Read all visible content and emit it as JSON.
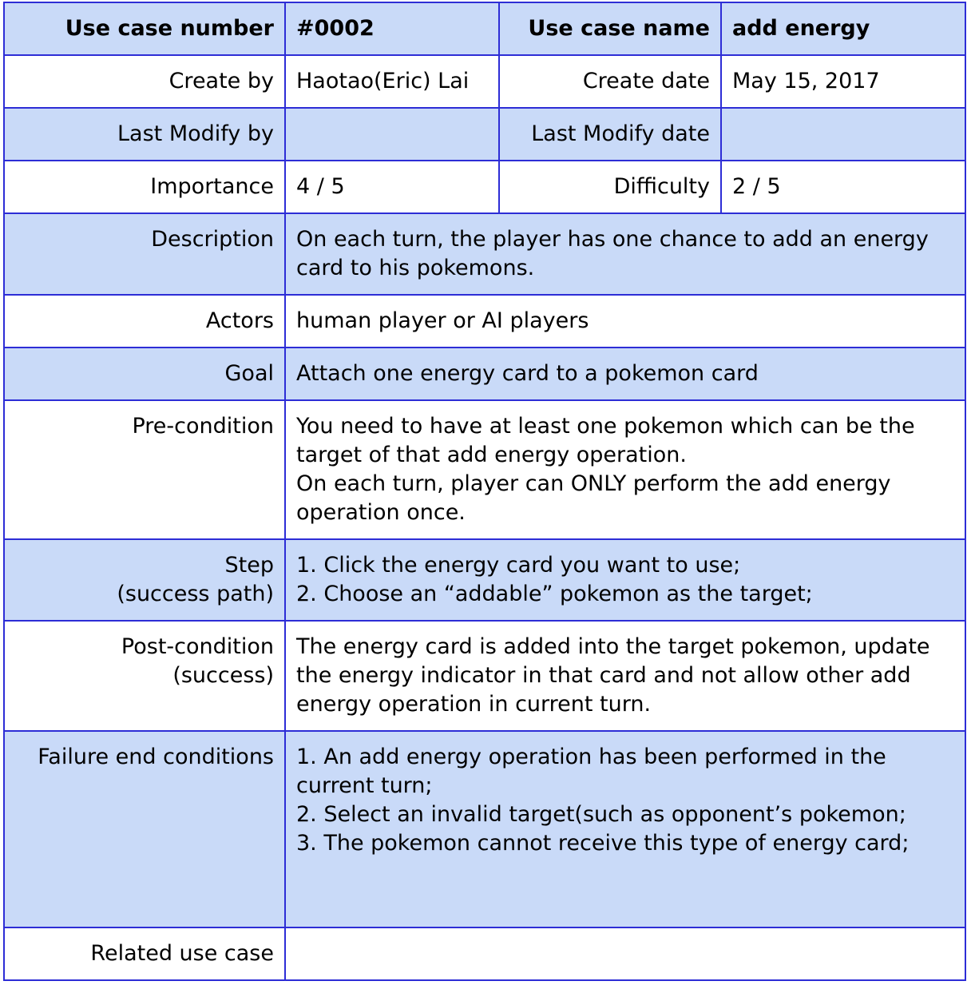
{
  "header": {
    "use_case_number_label": "Use case number",
    "use_case_number_value": "#0002",
    "use_case_name_label": "Use case name",
    "use_case_name_value": "add energy"
  },
  "meta": {
    "create_by_label": "Create by",
    "create_by_value": "Haotao(Eric) Lai",
    "create_date_label": "Create date",
    "create_date_value": "May 15, 2017",
    "last_modify_by_label": "Last Modify by",
    "last_modify_by_value": "",
    "last_modify_date_label": "Last Modify date",
    "last_modify_date_value": "",
    "importance_label": "Importance",
    "importance_value": "4 / 5",
    "difficulty_label": "Difficulty",
    "difficulty_value": "2  / 5"
  },
  "rows": {
    "description_label": "Description",
    "description_value": "On each turn, the player has one chance to add an energy card to his pokemons.",
    "actors_label": "Actors",
    "actors_value": "human player or AI players",
    "goal_label": "Goal",
    "goal_value": "Attach one energy card to a pokemon card",
    "precondition_label": "Pre-condition",
    "precondition_value": "You need to have at least one pokemon which can be the target of that add energy operation.\nOn each turn, player can ONLY perform the add energy operation once.",
    "step_label": "Step\n(success path)",
    "step_value": "1. Click the energy card you want to use;\n2. Choose an “addable” pokemon as the target;",
    "postcondition_label": "Post-condition\n(success)",
    "postcondition_value": "The energy card is added into the target pokemon, update the energy indicator in that card and not allow other add energy operation in current turn.",
    "failure_label": "Failure end conditions",
    "failure_value": "1. An add energy operation has been performed in the current turn;\n2. Select an invalid target(such as opponent’s pokemon;\n3. The pokemon cannot receive this type of energy card;",
    "related_label": "Related use case",
    "related_value": ""
  },
  "colors": {
    "border": "#2d2dd6",
    "row_blue": "#c9daf8",
    "row_white": "#ffffff"
  }
}
